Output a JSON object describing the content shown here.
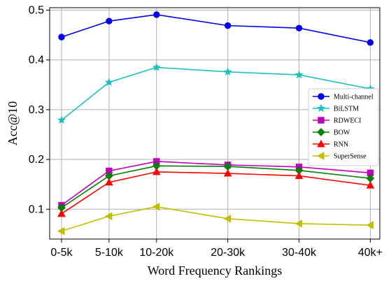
{
  "chart_data": {
    "type": "line",
    "xlabel": "Word Frequency Rankings",
    "ylabel": "Acc@10",
    "x": [
      0,
      1,
      2,
      3,
      4,
      5
    ],
    "xticks": [
      {
        "value": 0,
        "label": "0-5k"
      },
      {
        "value": 1,
        "label": "5-10k"
      },
      {
        "value": 2,
        "label": "10-20k"
      },
      {
        "value": 3,
        "label": "20-30k"
      },
      {
        "value": 4,
        "label": "30-40k"
      },
      {
        "value": 5,
        "label": "40k+"
      }
    ],
    "x_ticks_at": [
      0,
      1,
      2,
      3.5,
      5,
      6.5
    ],
    "yticks": [
      0.1,
      0.2,
      0.3,
      0.4,
      0.5
    ],
    "ytick_labels": [
      "0.1",
      "0.2",
      "0.3",
      "0.4",
      "0.5"
    ],
    "xlim": [
      -0.25,
      6.7
    ],
    "ylim": [
      0.04,
      0.505
    ],
    "grid": true,
    "legend_position": "right",
    "series": [
      {
        "name": "Multi-channel",
        "color": "#0000ee",
        "marker": "circle",
        "values": [
          0.446,
          0.478,
          0.491,
          0.469,
          0.464,
          0.435
        ]
      },
      {
        "name": "BiLSTM",
        "color": "#1fbfbf",
        "marker": "star",
        "values": [
          0.279,
          0.355,
          0.385,
          0.376,
          0.37,
          0.342
        ]
      },
      {
        "name": "RDWECI",
        "color": "#bf00bf",
        "marker": "square",
        "values": [
          0.108,
          0.177,
          0.196,
          0.189,
          0.185,
          0.173
        ]
      },
      {
        "name": "BOW",
        "color": "#008000",
        "marker": "diamond",
        "values": [
          0.103,
          0.167,
          0.187,
          0.186,
          0.178,
          0.162
        ]
      },
      {
        "name": "RNN",
        "color": "#ff0000",
        "marker": "triangle-up",
        "values": [
          0.091,
          0.154,
          0.175,
          0.172,
          0.167,
          0.148
        ]
      },
      {
        "name": "SuperSense",
        "color": "#bfbf00",
        "marker": "triangle-left",
        "values": [
          0.056,
          0.086,
          0.105,
          0.081,
          0.071,
          0.068
        ]
      }
    ]
  }
}
